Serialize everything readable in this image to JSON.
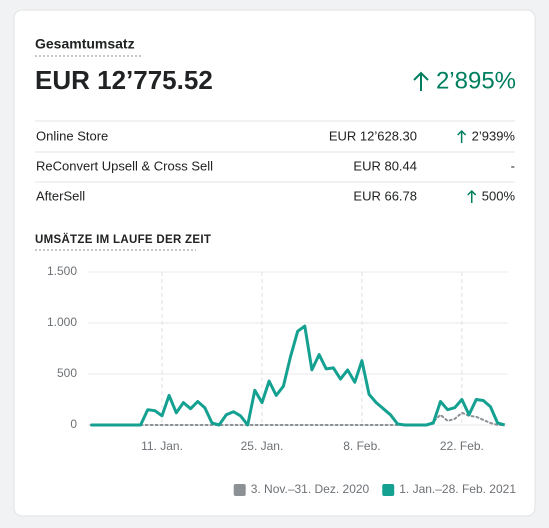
{
  "header": {
    "title": "Gesamtumsatz",
    "total": "EUR 12’775.52",
    "change": "2’895%"
  },
  "table": {
    "rows": [
      [
        "Online Store",
        "EUR 12’628.30",
        "2’939%"
      ],
      [
        "ReConvert Upsell & Cross Sell",
        "EUR 80.44",
        "-"
      ],
      [
        "AfterSell",
        "EUR 66.78",
        "500%"
      ]
    ]
  },
  "chart_data": {
    "type": "line",
    "title": "UMSÄTZE IM LAUFE DER ZEIT",
    "categories": [
      null,
      null,
      null,
      null,
      null,
      null,
      null,
      null,
      null,
      null,
      "11. Jan.",
      null,
      null,
      null,
      null,
      null,
      null,
      null,
      null,
      null,
      null,
      null,
      null,
      null,
      "25. Jan.",
      null,
      null,
      null,
      null,
      null,
      null,
      null,
      null,
      null,
      null,
      null,
      null,
      null,
      "8. Feb.",
      null,
      null,
      null,
      null,
      null,
      null,
      null,
      null,
      null,
      null,
      null,
      null,
      null,
      "22. Feb.",
      null,
      null,
      null,
      null,
      null,
      null
    ],
    "series": [
      {
        "name": "3. Nov.–31. Dez. 2020",
        "color": "#8c9196",
        "dashed": true,
        "values": [
          0,
          0,
          0,
          0,
          0,
          0,
          0,
          0,
          0,
          0,
          0,
          0,
          0,
          0,
          0,
          0,
          0,
          0,
          0,
          0,
          0,
          0,
          0,
          0,
          0,
          0,
          0,
          0,
          0,
          0,
          0,
          0,
          0,
          0,
          0,
          0,
          0,
          0,
          0,
          0,
          0,
          0,
          0,
          0,
          0,
          0,
          0,
          0,
          30,
          100,
          40,
          60,
          120,
          90,
          80,
          50,
          20,
          0,
          0
        ]
      },
      {
        "name": "1. Jan.–28. Feb. 2021",
        "color": "#15a191",
        "values": [
          0,
          0,
          0,
          0,
          0,
          0,
          0,
          0,
          150,
          140,
          90,
          290,
          120,
          220,
          160,
          230,
          170,
          20,
          0,
          100,
          130,
          90,
          0,
          340,
          220,
          430,
          290,
          380,
          670,
          920,
          970,
          540,
          690,
          550,
          560,
          450,
          540,
          420,
          630,
          300,
          220,
          160,
          100,
          10,
          0,
          0,
          0,
          0,
          20,
          230,
          150,
          170,
          250,
          100,
          250,
          240,
          180,
          20,
          0
        ]
      }
    ],
    "ylim": [
      0,
      1500
    ],
    "yticks": [
      0,
      500,
      {
        "value": 1000,
        "label": "1.000"
      },
      {
        "value": 1500,
        "label": "1.500"
      }
    ],
    "grid": true
  }
}
